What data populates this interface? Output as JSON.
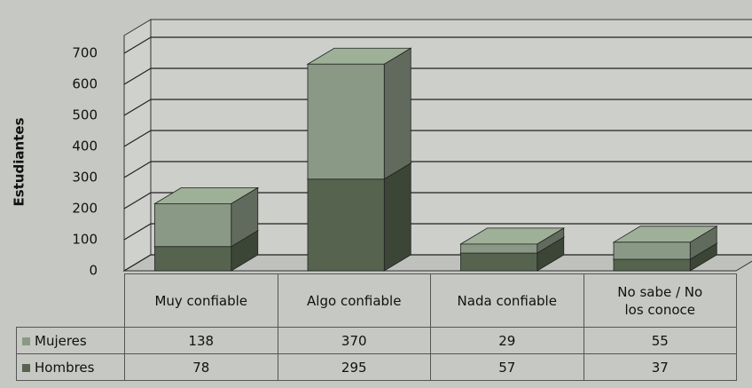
{
  "chart_data": {
    "type": "bar",
    "stacked": true,
    "y_label": "Estudiantes",
    "categories": [
      "Muy confiable",
      "Algo confiable",
      "Nada confiable",
      "No sabe / No los conoce"
    ],
    "series": [
      {
        "name": "Mujeres",
        "color": "#8a9985",
        "values": [
          138,
          370,
          29,
          55
        ]
      },
      {
        "name": "Hombres",
        "color": "#56644f",
        "values": [
          78,
          295,
          57,
          37
        ]
      }
    ],
    "ylim": [
      0,
      700
    ],
    "yticks": [
      0,
      100,
      200,
      300,
      400,
      500,
      600,
      700
    ],
    "grid": true
  }
}
